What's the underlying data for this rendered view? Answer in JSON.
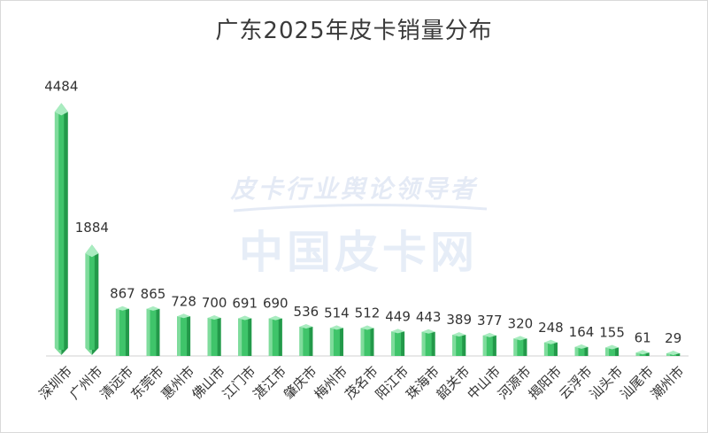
{
  "chart_data": {
    "type": "bar",
    "title": "广东2025年皮卡销量分布",
    "categories": [
      "深圳市",
      "广州市",
      "清远市",
      "东莞市",
      "惠州市",
      "佛山市",
      "江门市",
      "湛江市",
      "肇庆市",
      "梅州市",
      "茂名市",
      "阳江市",
      "珠海市",
      "韶关市",
      "中山市",
      "河源市",
      "揭阳市",
      "云浮市",
      "汕头市",
      "汕尾市",
      "潮州市"
    ],
    "values": [
      4484,
      1884,
      867,
      865,
      728,
      700,
      691,
      690,
      536,
      514,
      512,
      449,
      443,
      389,
      377,
      320,
      248,
      164,
      155,
      61,
      29
    ],
    "xlabel": "",
    "ylabel": "",
    "ylim": [
      0,
      4800
    ],
    "grid": false,
    "legend": "none",
    "colors": {
      "bar_main": "#3fc46a",
      "bar_light": "#7fdc9c",
      "bar_dark": "#23994a",
      "bar_top": "#a9ecc0",
      "axis": "#d0d0d0",
      "text": "#333333"
    }
  },
  "watermark": {
    "line1": "皮卡行业舆论领导者",
    "line2": "中国皮卡网"
  }
}
